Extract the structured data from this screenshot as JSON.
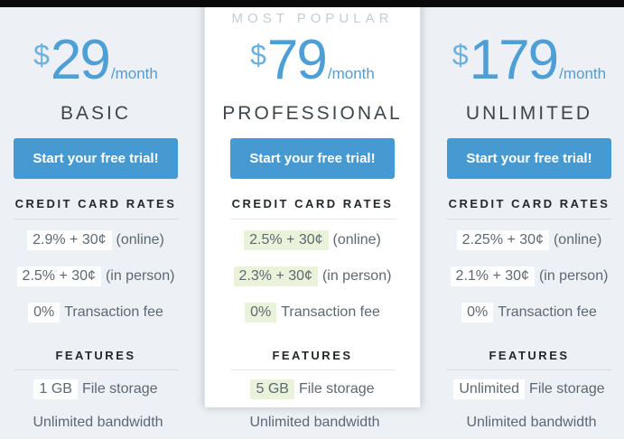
{
  "colors": {
    "top_bar": "#0a0a0a",
    "outer_column_bg": "#edf0f4",
    "popular_column_bg": "#ffffff",
    "price_blue": "#4e9fd6",
    "button_blue": "#4799d2",
    "popular_label_gray": "#c3cdd7",
    "body_text_gray": "#5c6873",
    "header_text_dark": "#23282d",
    "highlight_white": "#ffffff",
    "highlight_green": "#ebf2da"
  },
  "plans": [
    {
      "popular_label": "",
      "currency": "$",
      "price": "29",
      "period": "/month",
      "name": "BASIC",
      "cta": "Start your free trial!",
      "rates_header": "CREDIT CARD RATES",
      "rates": [
        {
          "value": "2.9% + 30¢",
          "label": "(online)"
        },
        {
          "value": "2.5% + 30¢",
          "label": "(in person)"
        },
        {
          "value": "0%",
          "label": "Transaction fee"
        }
      ],
      "features_header": "FEATURES",
      "features": [
        {
          "value": "1 GB",
          "label": "File storage"
        },
        {
          "value": "",
          "label": "Unlimited bandwidth"
        }
      ]
    },
    {
      "popular_label": "MOST POPULAR",
      "currency": "$",
      "price": "79",
      "period": "/month",
      "name": "PROFESSIONAL",
      "cta": "Start your free trial!",
      "rates_header": "CREDIT CARD RATES",
      "rates": [
        {
          "value": "2.5% + 30¢",
          "label": "(online)"
        },
        {
          "value": "2.3% + 30¢",
          "label": "(in person)"
        },
        {
          "value": "0%",
          "label": "Transaction fee"
        }
      ],
      "features_header": "FEATURES",
      "features": [
        {
          "value": "5 GB",
          "label": "File storage"
        },
        {
          "value": "",
          "label": "Unlimited bandwidth"
        }
      ]
    },
    {
      "popular_label": "",
      "currency": "$",
      "price": "179",
      "period": "/month",
      "name": "UNLIMITED",
      "cta": "Start your free trial!",
      "rates_header": "CREDIT CARD RATES",
      "rates": [
        {
          "value": "2.25% + 30¢",
          "label": "(online)"
        },
        {
          "value": "2.1% + 30¢",
          "label": "(in person)"
        },
        {
          "value": "0%",
          "label": "Transaction fee"
        }
      ],
      "features_header": "FEATURES",
      "features": [
        {
          "value": "Unlimited",
          "label": "File storage"
        },
        {
          "value": "",
          "label": "Unlimited bandwidth"
        }
      ]
    }
  ]
}
